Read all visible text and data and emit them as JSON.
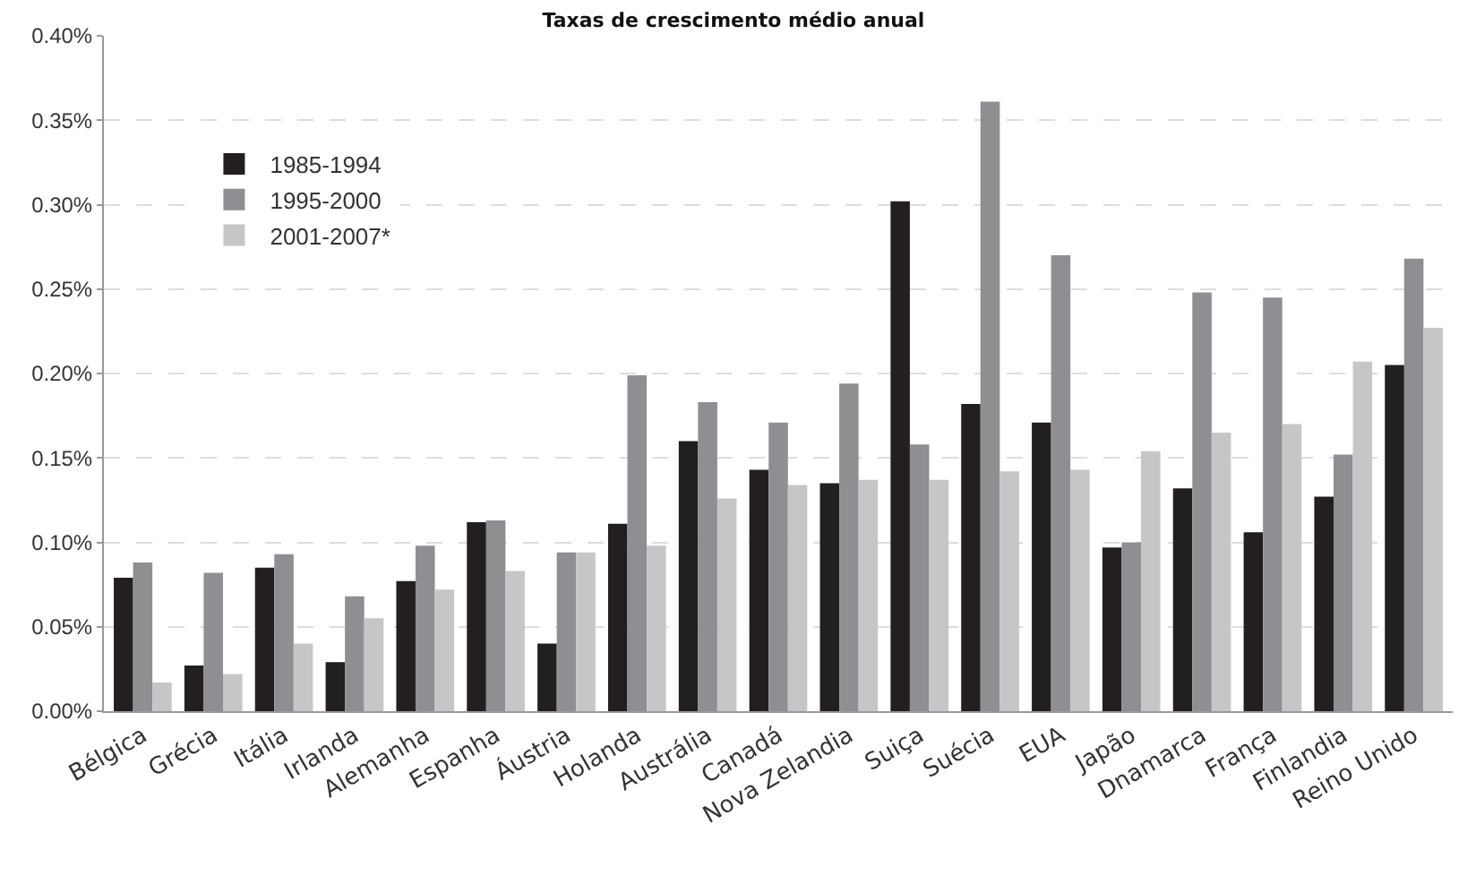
{
  "chart_data": {
    "type": "bar",
    "title": "Taxas de crescimento médio anual",
    "categories": [
      "Bélgica",
      "Grécia",
      "Itália",
      "Irlanda",
      "Alemanha",
      "Espanha",
      "Áustria",
      "Holanda",
      "Austrália",
      "Canadá",
      "Nova Zelandia",
      "Suiça",
      "Suécia",
      "EUA",
      "Japão",
      "Dnamarca",
      "França",
      "Finlandia",
      "Reino Unido"
    ],
    "series": [
      {
        "name": "1985-1994",
        "color": "#231f20",
        "values": [
          0.079,
          0.027,
          0.085,
          0.029,
          0.077,
          0.112,
          0.04,
          0.111,
          0.16,
          0.143,
          0.135,
          0.302,
          0.182,
          0.171,
          0.097,
          0.132,
          0.106,
          0.127,
          0.205
        ]
      },
      {
        "name": "1995-2000",
        "color": "#8e8f93",
        "values": [
          0.088,
          0.082,
          0.093,
          0.068,
          0.098,
          0.113,
          0.094,
          0.199,
          0.183,
          0.171,
          0.194,
          0.158,
          0.361,
          0.27,
          0.1,
          0.248,
          0.245,
          0.152,
          0.268
        ]
      },
      {
        "name": "2001-2007*",
        "color": "#c5c6c8",
        "values": [
          0.017,
          0.022,
          0.04,
          0.055,
          0.072,
          0.083,
          0.094,
          0.098,
          0.126,
          0.134,
          0.137,
          0.137,
          0.142,
          0.143,
          0.154,
          0.165,
          0.17,
          0.207,
          0.227
        ]
      }
    ],
    "ylim": [
      0,
      0.4
    ],
    "yticks": [
      {
        "value": 0,
        "label": "0.00%"
      },
      {
        "value": 0.05,
        "label": "0.05%"
      },
      {
        "value": 0.1,
        "label": "0.10%"
      },
      {
        "value": 0.15,
        "label": "0.15%"
      },
      {
        "value": 0.2,
        "label": "0.20%"
      },
      {
        "value": 0.25,
        "label": "0.25%"
      },
      {
        "value": 0.3,
        "label": "0.30%"
      },
      {
        "value": 0.35,
        "label": "0.35%"
      },
      {
        "value": 0.4,
        "label": "0.40%"
      }
    ],
    "grid": "y",
    "legend": "top left"
  }
}
